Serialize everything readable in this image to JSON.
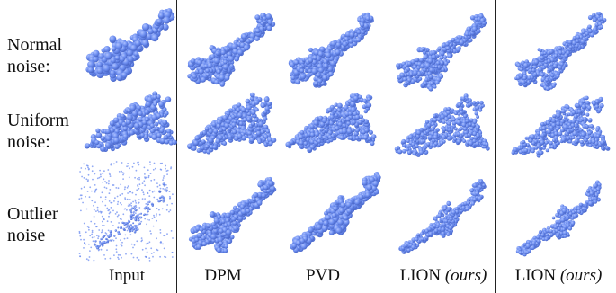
{
  "figure": {
    "row_labels": [
      {
        "line1": "Normal",
        "line2": "noise:"
      },
      {
        "line1": "Uniform",
        "line2": "noise:"
      },
      {
        "line1": "Outlier",
        "line2": "noise"
      }
    ],
    "column_labels": [
      {
        "text": "Input",
        "suffix": ""
      },
      {
        "text": "DPM",
        "suffix": ""
      },
      {
        "text": "PVD",
        "suffix": ""
      },
      {
        "text": "LION ",
        "suffix": "(ours)"
      },
      {
        "text": "LION ",
        "suffix": "(ours)"
      }
    ],
    "colors": {
      "point_cloud": "#6d8ef0",
      "highlight": "#aec2ff",
      "shadow": "#4a67c9",
      "divider": "#222222"
    }
  }
}
